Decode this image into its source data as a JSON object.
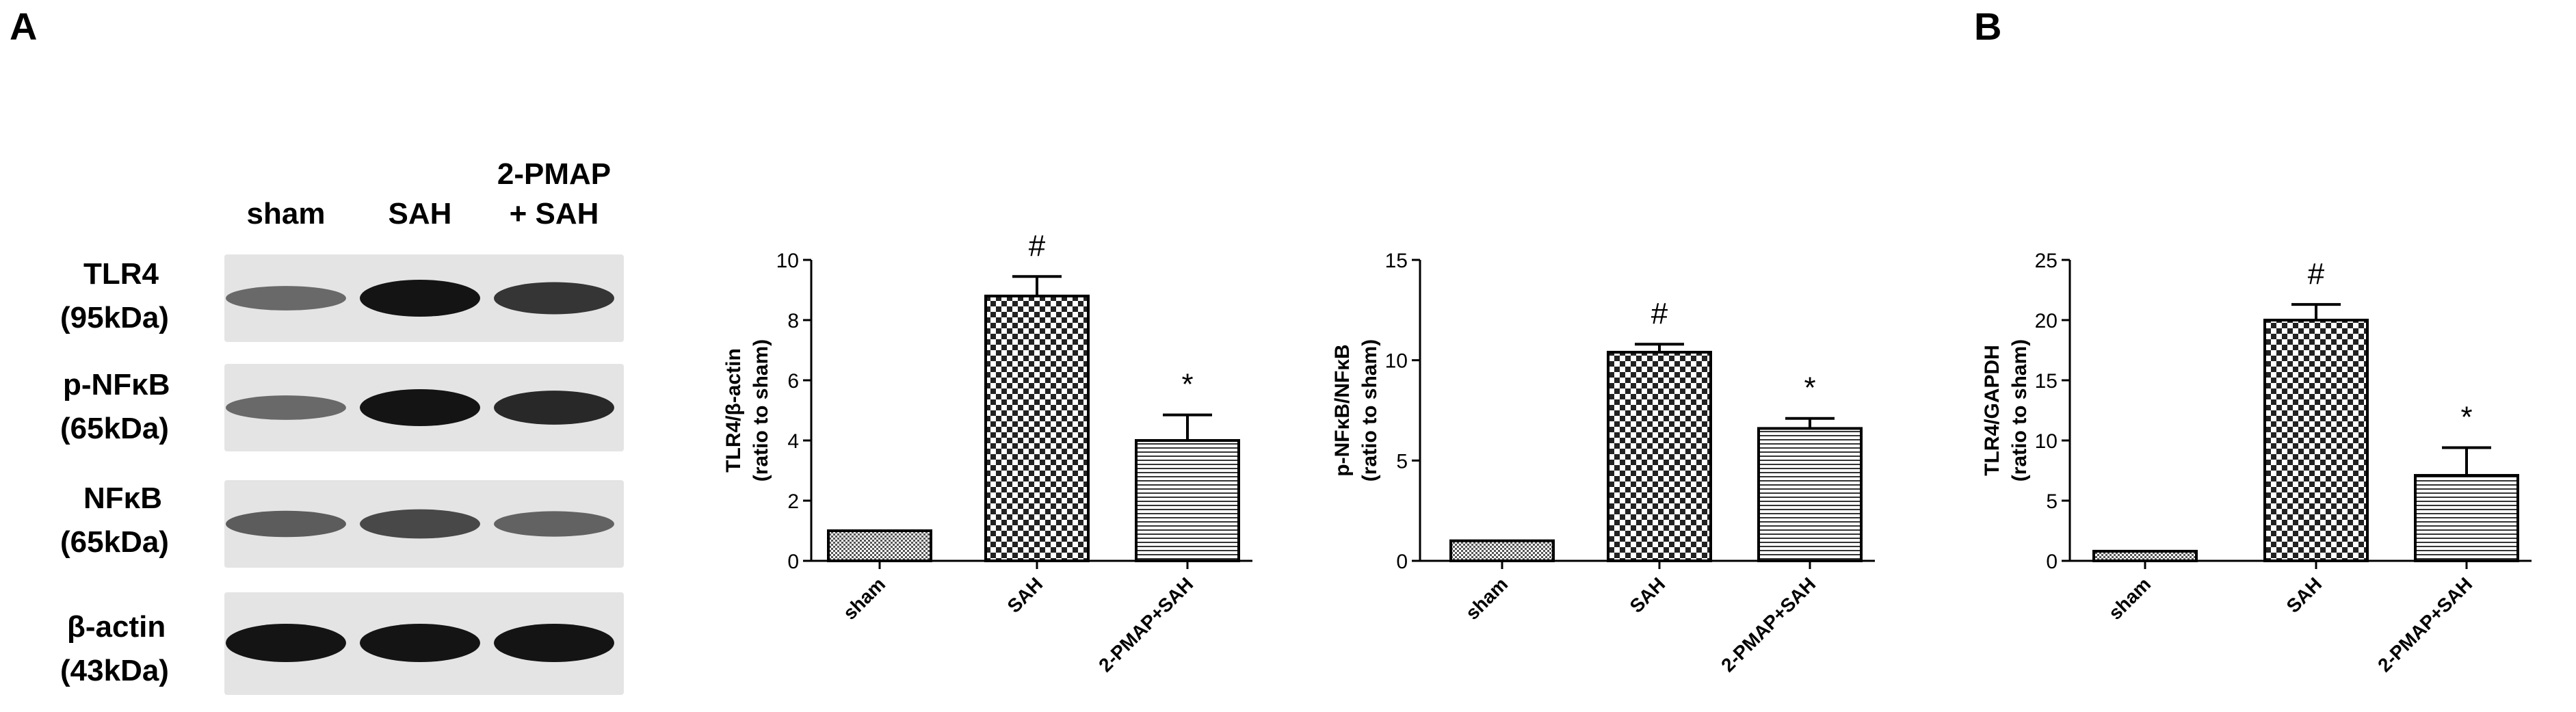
{
  "panels": [
    {
      "label": "A"
    },
    {
      "label": "B"
    }
  ],
  "blot": {
    "lanes": [
      "sham",
      "SAH",
      "2-PMAP\n+ SAH"
    ],
    "rows": [
      {
        "name": "TLR4",
        "kda": "(95kDa)",
        "intensity": [
          0.35,
          1.0,
          0.75
        ]
      },
      {
        "name": "p-NFκB",
        "kda": "(65kDa)",
        "intensity": [
          0.35,
          1.0,
          0.85
        ]
      },
      {
        "name": "NFκB",
        "kda": "(65kDa)",
        "intensity": [
          0.45,
          0.6,
          0.4
        ]
      },
      {
        "name": "β-actin",
        "kda": "(43kDa)",
        "intensity": [
          1.0,
          1.0,
          1.0
        ]
      }
    ]
  },
  "chart_data": [
    {
      "type": "bar",
      "categories": [
        "sham",
        "SAH",
        "2-PMAP+SAH"
      ],
      "values": [
        1.0,
        8.8,
        4.0
      ],
      "errors": [
        0,
        0.65,
        0.85
      ],
      "markers": [
        "",
        "#",
        "*"
      ],
      "ylabel": "TLR4/β-actin",
      "ylabel2": "(ratio to sham)",
      "ylim": [
        0,
        10
      ],
      "yticks": [
        0,
        2,
        4,
        6,
        8,
        10
      ],
      "patterns": [
        "dots",
        "checker",
        "hlines"
      ]
    },
    {
      "type": "bar",
      "categories": [
        "sham",
        "SAH",
        "2-PMAP+SAH"
      ],
      "values": [
        1.0,
        10.4,
        6.6
      ],
      "errors": [
        0,
        0.4,
        0.5
      ],
      "markers": [
        "",
        "#",
        "*"
      ],
      "ylabel": "p-NFκB/NFκB",
      "ylabel2": "(ratio to sham)",
      "ylim": [
        0,
        15
      ],
      "yticks": [
        0,
        5,
        10,
        15
      ],
      "patterns": [
        "dots",
        "checker",
        "hlines"
      ]
    },
    {
      "type": "bar",
      "categories": [
        "sham",
        "SAH",
        "2-PMAP+SAH"
      ],
      "values": [
        0.8,
        20.0,
        7.1
      ],
      "errors": [
        0,
        1.3,
        2.3
      ],
      "markers": [
        "",
        "#",
        "*"
      ],
      "ylabel": "TLR4/GAPDH",
      "ylabel2": "(ratio to sham)",
      "ylim": [
        0,
        25
      ],
      "yticks": [
        0,
        5,
        10,
        15,
        20,
        25
      ],
      "patterns": [
        "dots",
        "checker",
        "hlines"
      ]
    }
  ]
}
